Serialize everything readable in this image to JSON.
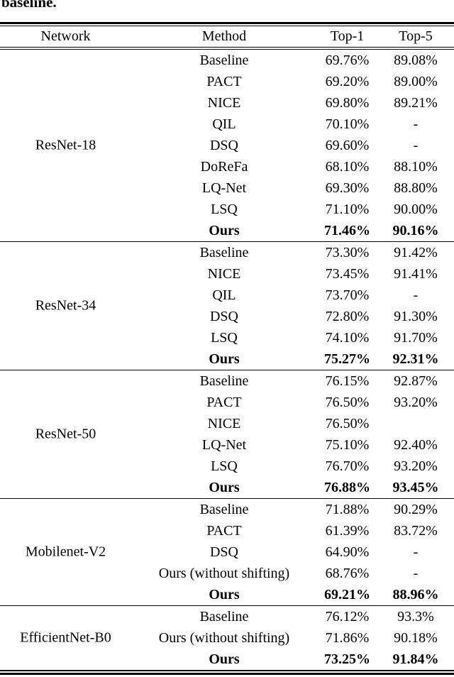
{
  "caption": "baseline.",
  "table": {
    "headers": [
      "Network",
      "Method",
      "Top-1",
      "Top-5"
    ],
    "groups": [
      {
        "network": "ResNet-18",
        "rows": [
          {
            "method": "Baseline",
            "top1": "69.76%",
            "top5": "89.08%",
            "bold": false
          },
          {
            "method": "PACT",
            "top1": "69.20%",
            "top5": "89.00%",
            "bold": false
          },
          {
            "method": "NICE",
            "top1": "69.80%",
            "top5": "89.21%",
            "bold": false
          },
          {
            "method": "QIL",
            "top1": "70.10%",
            "top5": "-",
            "bold": false
          },
          {
            "method": "DSQ",
            "top1": "69.60%",
            "top5": "-",
            "bold": false
          },
          {
            "method": "DoReFa",
            "top1": "68.10%",
            "top5": "88.10%",
            "bold": false
          },
          {
            "method": "LQ-Net",
            "top1": "69.30%",
            "top5": "88.80%",
            "bold": false
          },
          {
            "method": "LSQ",
            "top1": "71.10%",
            "top5": "90.00%",
            "bold": false
          },
          {
            "method": "Ours",
            "top1": "71.46%",
            "top5": "90.16%",
            "bold": true
          }
        ]
      },
      {
        "network": "ResNet-34",
        "rows": [
          {
            "method": "Baseline",
            "top1": "73.30%",
            "top5": "91.42%",
            "bold": false
          },
          {
            "method": "NICE",
            "top1": "73.45%",
            "top5": "91.41%",
            "bold": false
          },
          {
            "method": "QIL",
            "top1": "73.70%",
            "top5": "-",
            "bold": false
          },
          {
            "method": "DSQ",
            "top1": "72.80%",
            "top5": "91.30%",
            "bold": false
          },
          {
            "method": "LSQ",
            "top1": "74.10%",
            "top5": "91.70%",
            "bold": false
          },
          {
            "method": "Ours",
            "top1": "75.27%",
            "top5": "92.31%",
            "bold": true
          }
        ]
      },
      {
        "network": "ResNet-50",
        "rows": [
          {
            "method": "Baseline",
            "top1": "76.15%",
            "top5": "92.87%",
            "bold": false
          },
          {
            "method": "PACT",
            "top1": "76.50%",
            "top5": "93.20%",
            "bold": false
          },
          {
            "method": "NICE",
            "top1": "76.50%",
            "top5": "",
            "bold": false
          },
          {
            "method": "LQ-Net",
            "top1": "75.10%",
            "top5": "92.40%",
            "bold": false
          },
          {
            "method": "LSQ",
            "top1": "76.70%",
            "top5": "93.20%",
            "bold": false
          },
          {
            "method": "Ours",
            "top1": "76.88%",
            "top5": "93.45%",
            "bold": true
          }
        ]
      },
      {
        "network": "Mobilenet-V2",
        "rows": [
          {
            "method": "Baseline",
            "top1": "71.88%",
            "top5": "90.29%",
            "bold": false
          },
          {
            "method": "PACT",
            "top1": "61.39%",
            "top5": "83.72%",
            "bold": false
          },
          {
            "method": "DSQ",
            "top1": "64.90%",
            "top5": "-",
            "bold": false
          },
          {
            "method": "Ours (without shifting)",
            "top1": "68.76%",
            "top5": "-",
            "bold": false
          },
          {
            "method": "Ours",
            "top1": "69.21%",
            "top5": "88.96%",
            "bold": true
          }
        ]
      },
      {
        "network": "EfficientNet-B0",
        "rows": [
          {
            "method": "Baseline",
            "top1": "76.12%",
            "top5": "93.3%",
            "bold": false
          },
          {
            "method": "Ours (without shifting)",
            "top1": "71.86%",
            "top5": "90.18%",
            "bold": false
          },
          {
            "method": "Ours",
            "top1": "73.25%",
            "top5": "91.84%",
            "bold": true
          }
        ]
      }
    ]
  }
}
